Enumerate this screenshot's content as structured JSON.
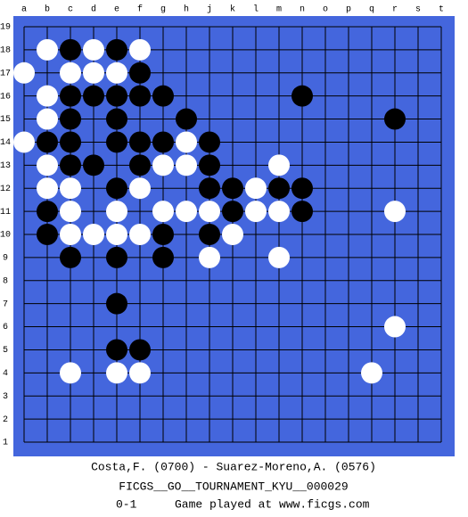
{
  "board": {
    "columns": [
      "a",
      "b",
      "c",
      "d",
      "e",
      "f",
      "g",
      "h",
      "j",
      "k",
      "l",
      "m",
      "n",
      "o",
      "p",
      "q",
      "r",
      "s",
      "t"
    ],
    "rows": [
      19,
      18,
      17,
      16,
      15,
      14,
      13,
      12,
      11,
      10,
      9,
      8,
      7,
      6,
      5,
      4,
      3,
      2,
      1
    ],
    "stones": [
      {
        "col": "b",
        "row": 18,
        "color": "white"
      },
      {
        "col": "c",
        "row": 18,
        "color": "black"
      },
      {
        "col": "d",
        "row": 18,
        "color": "white"
      },
      {
        "col": "e",
        "row": 18,
        "color": "black"
      },
      {
        "col": "f",
        "row": 18,
        "color": "white"
      },
      {
        "col": "a",
        "row": 17,
        "color": "white"
      },
      {
        "col": "c",
        "row": 17,
        "color": "white"
      },
      {
        "col": "d",
        "row": 17,
        "color": "white"
      },
      {
        "col": "e",
        "row": 17,
        "color": "white"
      },
      {
        "col": "f",
        "row": 17,
        "color": "black"
      },
      {
        "col": "b",
        "row": 16,
        "color": "white"
      },
      {
        "col": "c",
        "row": 16,
        "color": "black"
      },
      {
        "col": "d",
        "row": 16,
        "color": "black"
      },
      {
        "col": "e",
        "row": 16,
        "color": "black"
      },
      {
        "col": "f",
        "row": 16,
        "color": "black"
      },
      {
        "col": "g",
        "row": 16,
        "color": "black"
      },
      {
        "col": "n",
        "row": 16,
        "color": "black"
      },
      {
        "col": "b",
        "row": 15,
        "color": "white"
      },
      {
        "col": "c",
        "row": 15,
        "color": "black"
      },
      {
        "col": "e",
        "row": 15,
        "color": "black"
      },
      {
        "col": "h",
        "row": 15,
        "color": "black"
      },
      {
        "col": "r",
        "row": 15,
        "color": "black"
      },
      {
        "col": "a",
        "row": 14,
        "color": "white"
      },
      {
        "col": "b",
        "row": 14,
        "color": "black"
      },
      {
        "col": "c",
        "row": 14,
        "color": "black"
      },
      {
        "col": "e",
        "row": 14,
        "color": "black"
      },
      {
        "col": "f",
        "row": 14,
        "color": "black"
      },
      {
        "col": "g",
        "row": 14,
        "color": "black"
      },
      {
        "col": "h",
        "row": 14,
        "color": "white"
      },
      {
        "col": "j",
        "row": 14,
        "color": "black"
      },
      {
        "col": "b",
        "row": 13,
        "color": "white"
      },
      {
        "col": "c",
        "row": 13,
        "color": "black"
      },
      {
        "col": "d",
        "row": 13,
        "color": "black"
      },
      {
        "col": "f",
        "row": 13,
        "color": "black"
      },
      {
        "col": "g",
        "row": 13,
        "color": "white"
      },
      {
        "col": "h",
        "row": 13,
        "color": "white"
      },
      {
        "col": "j",
        "row": 13,
        "color": "black"
      },
      {
        "col": "m",
        "row": 13,
        "color": "white"
      },
      {
        "col": "b",
        "row": 12,
        "color": "white"
      },
      {
        "col": "c",
        "row": 12,
        "color": "white"
      },
      {
        "col": "e",
        "row": 12,
        "color": "black"
      },
      {
        "col": "f",
        "row": 12,
        "color": "white"
      },
      {
        "col": "j",
        "row": 12,
        "color": "black"
      },
      {
        "col": "k",
        "row": 12,
        "color": "black"
      },
      {
        "col": "l",
        "row": 12,
        "color": "white"
      },
      {
        "col": "m",
        "row": 12,
        "color": "black"
      },
      {
        "col": "n",
        "row": 12,
        "color": "black"
      },
      {
        "col": "b",
        "row": 11,
        "color": "black"
      },
      {
        "col": "c",
        "row": 11,
        "color": "white"
      },
      {
        "col": "e",
        "row": 11,
        "color": "white"
      },
      {
        "col": "g",
        "row": 11,
        "color": "white"
      },
      {
        "col": "h",
        "row": 11,
        "color": "white"
      },
      {
        "col": "j",
        "row": 11,
        "color": "white"
      },
      {
        "col": "k",
        "row": 11,
        "color": "black"
      },
      {
        "col": "l",
        "row": 11,
        "color": "white"
      },
      {
        "col": "m",
        "row": 11,
        "color": "white"
      },
      {
        "col": "n",
        "row": 11,
        "color": "black"
      },
      {
        "col": "r",
        "row": 11,
        "color": "white"
      },
      {
        "col": "b",
        "row": 10,
        "color": "black"
      },
      {
        "col": "c",
        "row": 10,
        "color": "white"
      },
      {
        "col": "d",
        "row": 10,
        "color": "white"
      },
      {
        "col": "e",
        "row": 10,
        "color": "white"
      },
      {
        "col": "f",
        "row": 10,
        "color": "white"
      },
      {
        "col": "g",
        "row": 10,
        "color": "black"
      },
      {
        "col": "j",
        "row": 10,
        "color": "black"
      },
      {
        "col": "k",
        "row": 10,
        "color": "white"
      },
      {
        "col": "c",
        "row": 9,
        "color": "black"
      },
      {
        "col": "e",
        "row": 9,
        "color": "black"
      },
      {
        "col": "g",
        "row": 9,
        "color": "black"
      },
      {
        "col": "j",
        "row": 9,
        "color": "white"
      },
      {
        "col": "m",
        "row": 9,
        "color": "white"
      },
      {
        "col": "e",
        "row": 7,
        "color": "black"
      },
      {
        "col": "r",
        "row": 6,
        "color": "white"
      },
      {
        "col": "e",
        "row": 5,
        "color": "black"
      },
      {
        "col": "f",
        "row": 5,
        "color": "black"
      },
      {
        "col": "c",
        "row": 4,
        "color": "white"
      },
      {
        "col": "e",
        "row": 4,
        "color": "white"
      },
      {
        "col": "f",
        "row": 4,
        "color": "white"
      },
      {
        "col": "q",
        "row": 4,
        "color": "white"
      }
    ]
  },
  "footer": {
    "players": "Costa,F. (0700) - Suarez-Moreno,A. (0576)",
    "tournament": "FICGS__GO__TOURNAMENT_KYU__000029",
    "result": "0-1",
    "note": "Game played at www.ficgs.com"
  }
}
